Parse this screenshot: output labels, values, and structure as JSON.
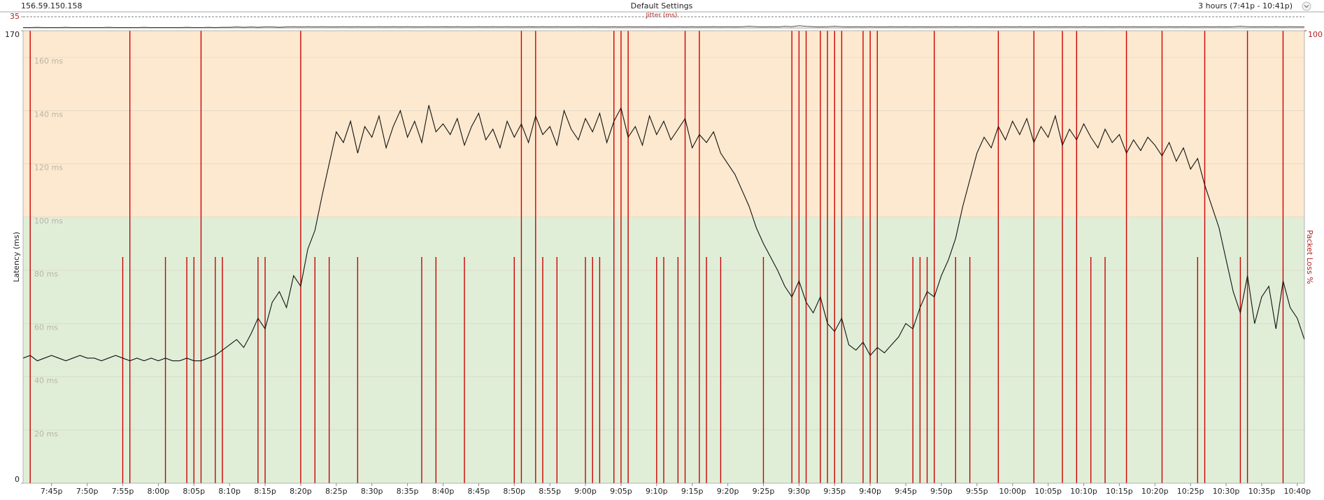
{
  "chart_data": {
    "type": "line",
    "host": "156.59.150.158",
    "title": "Default Settings",
    "time_range": "3 hours (7:41p - 10:41p)",
    "ylabel": "Latency (ms)",
    "y2label": "Packet Loss %",
    "jitter_title": "Jitter (ms)",
    "jitter_ylim": [
      0,
      35
    ],
    "jitter_yticks": [
      35
    ],
    "ylim": [
      0,
      170
    ],
    "yticks": [
      0,
      {
        "value": 20,
        "label": "20 ms"
      },
      {
        "value": 40,
        "label": "40 ms"
      },
      {
        "value": 60,
        "label": "60 ms"
      },
      {
        "value": 80,
        "label": "80 ms"
      },
      {
        "value": 100,
        "label": "100 ms"
      },
      {
        "value": 120,
        "label": "120 ms"
      },
      {
        "value": 140,
        "label": "140 ms"
      },
      {
        "value": 160,
        "label": "160 ms"
      },
      170
    ],
    "y2lim": [
      0,
      100
    ],
    "y2ticks": [
      100
    ],
    "grid": true,
    "bands": [
      {
        "from": 0,
        "to": 100,
        "color": "#e0eed8"
      },
      {
        "from": 100,
        "to": 170,
        "color": "#fde9cf"
      }
    ],
    "x": [
      "7:41p",
      "7:42p",
      "7:43p",
      "7:44p",
      "7:45p",
      "7:46p",
      "7:47p",
      "7:48p",
      "7:49p",
      "7:50p",
      "7:51p",
      "7:52p",
      "7:53p",
      "7:54p",
      "7:55p",
      "7:56p",
      "7:57p",
      "7:58p",
      "7:59p",
      "8:00p",
      "8:01p",
      "8:02p",
      "8:03p",
      "8:04p",
      "8:05p",
      "8:06p",
      "8:07p",
      "8:08p",
      "8:09p",
      "8:10p",
      "8:11p",
      "8:12p",
      "8:13p",
      "8:14p",
      "8:15p",
      "8:16p",
      "8:17p",
      "8:18p",
      "8:19p",
      "8:20p",
      "8:21p",
      "8:22p",
      "8:23p",
      "8:24p",
      "8:25p",
      "8:26p",
      "8:27p",
      "8:28p",
      "8:29p",
      "8:30p",
      "8:31p",
      "8:32p",
      "8:33p",
      "8:34p",
      "8:35p",
      "8:36p",
      "8:37p",
      "8:38p",
      "8:39p",
      "8:40p",
      "8:41p",
      "8:42p",
      "8:43p",
      "8:44p",
      "8:45p",
      "8:46p",
      "8:47p",
      "8:48p",
      "8:49p",
      "8:50p",
      "8:51p",
      "8:52p",
      "8:53p",
      "8:54p",
      "8:55p",
      "8:56p",
      "8:57p",
      "8:58p",
      "8:59p",
      "9:00p",
      "9:01p",
      "9:02p",
      "9:03p",
      "9:04p",
      "9:05p",
      "9:06p",
      "9:07p",
      "9:08p",
      "9:09p",
      "9:10p",
      "9:11p",
      "9:12p",
      "9:13p",
      "9:14p",
      "9:15p",
      "9:16p",
      "9:17p",
      "9:18p",
      "9:19p",
      "9:20p",
      "9:21p",
      "9:22p",
      "9:23p",
      "9:24p",
      "9:25p",
      "9:26p",
      "9:27p",
      "9:28p",
      "9:29p",
      "9:30p",
      "9:31p",
      "9:32p",
      "9:33p",
      "9:34p",
      "9:35p",
      "9:36p",
      "9:37p",
      "9:38p",
      "9:39p",
      "9:40p",
      "9:41p",
      "9:42p",
      "9:43p",
      "9:44p",
      "9:45p",
      "9:46p",
      "9:47p",
      "9:48p",
      "9:49p",
      "9:50p",
      "9:51p",
      "9:52p",
      "9:53p",
      "9:54p",
      "9:55p",
      "9:56p",
      "9:57p",
      "9:58p",
      "9:59p",
      "10:00p",
      "10:01p",
      "10:02p",
      "10:03p",
      "10:04p",
      "10:05p",
      "10:06p",
      "10:07p",
      "10:08p",
      "10:09p",
      "10:10p",
      "10:11p",
      "10:12p",
      "10:13p",
      "10:14p",
      "10:15p",
      "10:16p",
      "10:17p",
      "10:18p",
      "10:19p",
      "10:20p",
      "10:21p",
      "10:22p",
      "10:23p",
      "10:24p",
      "10:25p",
      "10:26p",
      "10:27p",
      "10:28p",
      "10:29p",
      "10:30p",
      "10:31p",
      "10:32p",
      "10:33p",
      "10:34p",
      "10:35p",
      "10:36p",
      "10:37p",
      "10:38p",
      "10:39p",
      "10:40p",
      "10:41p"
    ],
    "xticks": [
      "7:45p",
      "7:50p",
      "7:55p",
      "8:00p",
      "8:05p",
      "8:10p",
      "8:15p",
      "8:20p",
      "8:25p",
      "8:30p",
      "8:35p",
      "8:40p",
      "8:45p",
      "8:50p",
      "8:55p",
      "9:00p",
      "9:05p",
      "9:10p",
      "9:15p",
      "9:20p",
      "9:25p",
      "9:30p",
      "9:35p",
      "9:40p",
      "9:45p",
      "9:50p",
      "9:55p",
      "10:00p",
      "10:05p",
      "10:10p",
      "10:15p",
      "10:20p",
      "10:25p",
      "10:30p",
      "10:35p",
      "10:40p"
    ],
    "series": [
      {
        "name": "Latency (ms)",
        "color": "#111111",
        "values": [
          47,
          48,
          46,
          47,
          48,
          47,
          46,
          47,
          48,
          47,
          47,
          46,
          47,
          48,
          47,
          46,
          47,
          46,
          47,
          46,
          47,
          46,
          46,
          47,
          46,
          46,
          47,
          48,
          50,
          52,
          54,
          51,
          56,
          62,
          58,
          68,
          72,
          66,
          78,
          74,
          88,
          95,
          108,
          120,
          132,
          128,
          136,
          124,
          134,
          130,
          138,
          126,
          134,
          140,
          130,
          136,
          128,
          142,
          132,
          135,
          131,
          137,
          127,
          134,
          139,
          129,
          133,
          126,
          136,
          130,
          135,
          128,
          138,
          131,
          134,
          127,
          140,
          133,
          129,
          137,
          132,
          139,
          128,
          136,
          141,
          130,
          134,
          127,
          138,
          131,
          136,
          129,
          133,
          137,
          126,
          131,
          128,
          132,
          124,
          120,
          116,
          110,
          104,
          96,
          90,
          85,
          80,
          74,
          70,
          76,
          68,
          64,
          70,
          60,
          57,
          62,
          52,
          50,
          53,
          48,
          51,
          49,
          52,
          55,
          60,
          58,
          66,
          72,
          70,
          78,
          84,
          92,
          104,
          114,
          124,
          130,
          126,
          134,
          129,
          136,
          131,
          137,
          128,
          134,
          130,
          138,
          127,
          133,
          129,
          135,
          130,
          126,
          133,
          128,
          131,
          124,
          129,
          125,
          130,
          127,
          123,
          128,
          121,
          126,
          118,
          122,
          112,
          104,
          96,
          84,
          72,
          64,
          78,
          60,
          70,
          74,
          58,
          76,
          66,
          62,
          54
        ]
      },
      {
        "name": "Packet Loss %",
        "color": "#cc0000",
        "axis": "y2",
        "values": [
          0,
          100,
          0,
          0,
          0,
          0,
          0,
          0,
          0,
          0,
          0,
          0,
          0,
          0,
          50,
          100,
          0,
          0,
          0,
          0,
          50,
          0,
          0,
          50,
          50,
          100,
          0,
          50,
          50,
          0,
          0,
          0,
          0,
          50,
          50,
          0,
          0,
          0,
          0,
          100,
          0,
          50,
          0,
          50,
          0,
          0,
          0,
          50,
          0,
          0,
          0,
          0,
          0,
          0,
          0,
          0,
          50,
          0,
          50,
          0,
          0,
          0,
          50,
          0,
          0,
          0,
          0,
          0,
          0,
          50,
          100,
          0,
          100,
          50,
          0,
          50,
          0,
          0,
          0,
          50,
          50,
          50,
          0,
          100,
          100,
          100,
          0,
          0,
          0,
          50,
          50,
          0,
          50,
          100,
          0,
          100,
          50,
          0,
          50,
          0,
          0,
          0,
          0,
          0,
          50,
          0,
          0,
          0,
          100,
          100,
          100,
          0,
          100,
          100,
          100,
          100,
          0,
          0,
          100,
          100,
          100,
          0,
          0,
          0,
          0,
          50,
          50,
          50,
          100,
          0,
          0,
          50,
          0,
          50,
          0,
          0,
          0,
          100,
          0,
          0,
          0,
          0,
          100,
          0,
          0,
          0,
          100,
          0,
          100,
          0,
          50,
          0,
          50,
          0,
          0,
          100,
          0,
          0,
          0,
          0,
          100,
          0,
          0,
          0,
          0,
          50,
          100,
          0,
          0,
          0,
          0,
          50,
          100,
          0,
          0,
          0,
          0,
          100,
          0,
          0,
          0
        ]
      },
      {
        "name": "Jitter (ms)",
        "color": "#333333",
        "axis": "jitter",
        "values": [
          1,
          1,
          2,
          1,
          1,
          1,
          2,
          1,
          1,
          1,
          1,
          1,
          2,
          1,
          1,
          1,
          1,
          2,
          1,
          1,
          1,
          1,
          1,
          2,
          1,
          1,
          2,
          1,
          2,
          2,
          3,
          2,
          3,
          2,
          3,
          3,
          2,
          3,
          4,
          3,
          4,
          3,
          4,
          3,
          3,
          4,
          3,
          4,
          3,
          3,
          4,
          3,
          4,
          3,
          4,
          3,
          3,
          4,
          3,
          4,
          3,
          4,
          3,
          3,
          4,
          3,
          4,
          3,
          4,
          3,
          3,
          4,
          3,
          4,
          3,
          4,
          3,
          3,
          4,
          3,
          4,
          3,
          3,
          4,
          3,
          4,
          3,
          4,
          3,
          3,
          4,
          3,
          4,
          3,
          4,
          3,
          3,
          4,
          3,
          4,
          3,
          4,
          5,
          4,
          3,
          4,
          3,
          5,
          4,
          7,
          5,
          4,
          3,
          4,
          5,
          4,
          3,
          4,
          3,
          4,
          3,
          3,
          4,
          3,
          4,
          3,
          4,
          3,
          3,
          4,
          3,
          4,
          3,
          4,
          3,
          4,
          3,
          3,
          4,
          3,
          4,
          3,
          4,
          3,
          3,
          4,
          3,
          4,
          3,
          4,
          3,
          3,
          4,
          3,
          4,
          3,
          4,
          3,
          3,
          4,
          3,
          4,
          3,
          4,
          3,
          3,
          4,
          3,
          4,
          3,
          4,
          5,
          4,
          3,
          4,
          3,
          4,
          3,
          4,
          3,
          3
        ]
      }
    ]
  }
}
